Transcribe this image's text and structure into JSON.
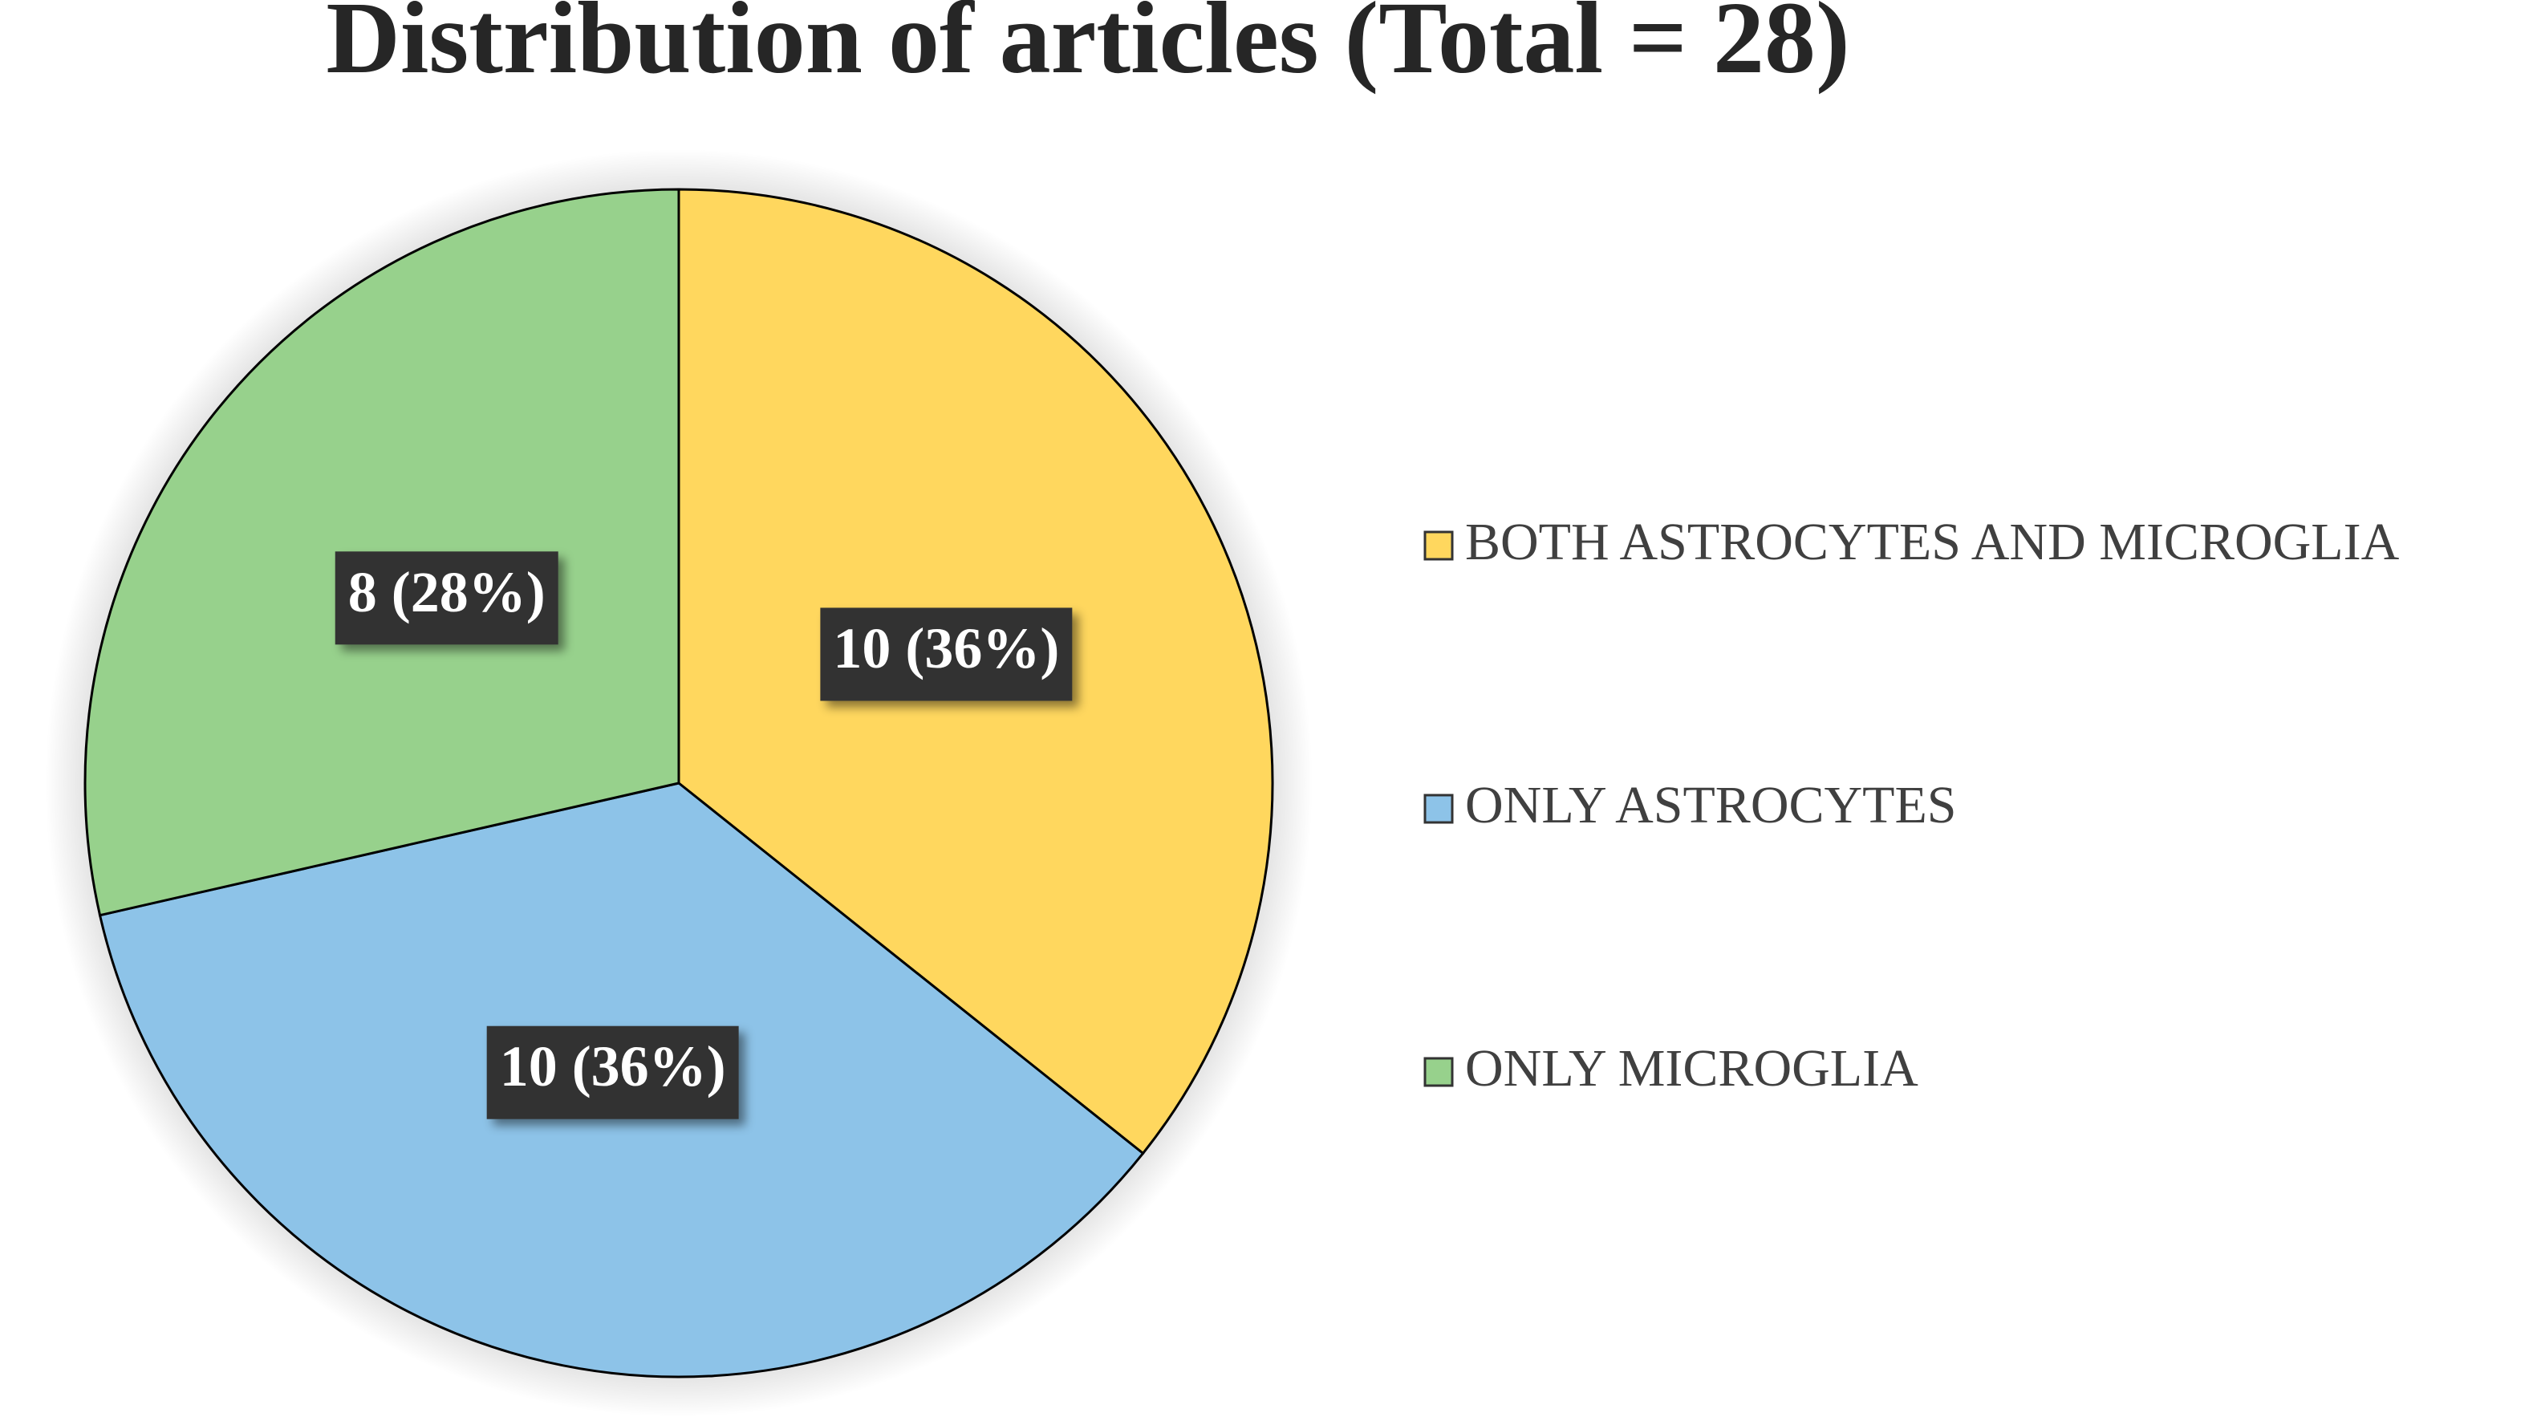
{
  "chart_data": {
    "type": "pie",
    "title": "Distribution of articles (Total = 28)",
    "categories": [
      "BOTH ASTROCYTES AND MICROGLIA",
      "ONLY ASTROCYTES",
      "ONLY MICROGLIA"
    ],
    "values": [
      10,
      10,
      8
    ],
    "value_labels": [
      "10 (36%)",
      "10 (36%)",
      "8 (28%)"
    ],
    "colors": [
      "#ffd75e",
      "#8dc3e8",
      "#97d18c"
    ],
    "legend": "right"
  }
}
